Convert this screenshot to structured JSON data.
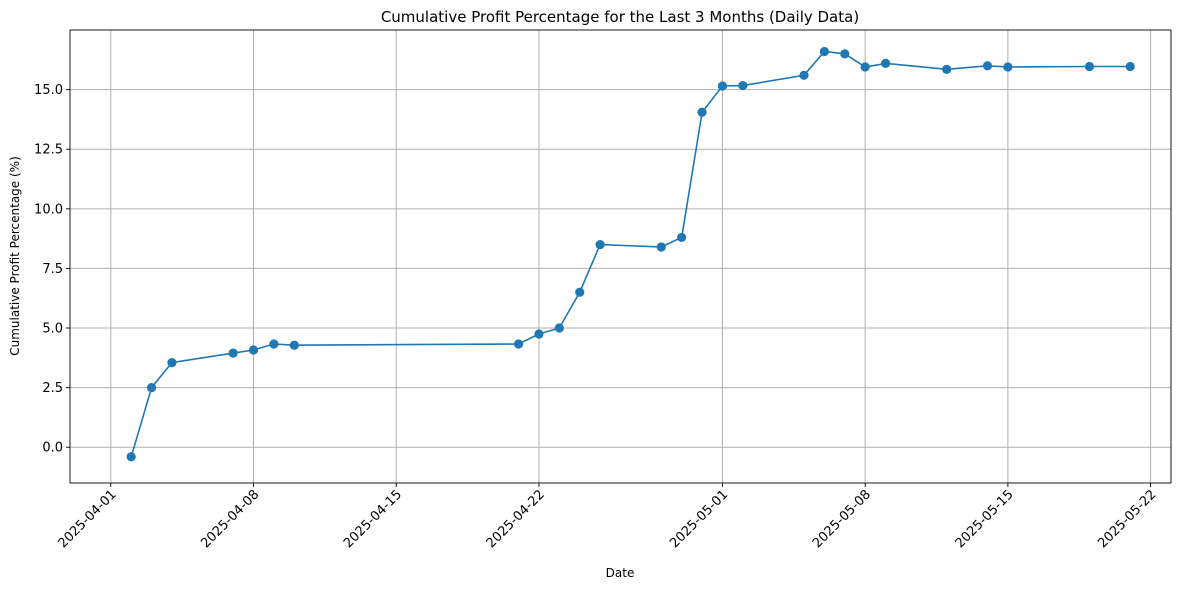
{
  "chart_data": {
    "type": "line",
    "title": "Cumulative Profit Percentage for the Last 3 Months (Daily Data)",
    "xlabel": "Date",
    "ylabel": "Cumulative Profit Percentage (%)",
    "xlim": [
      "2025-03-30",
      "2025-05-23"
    ],
    "ylim": [
      -1.5,
      17.5
    ],
    "x_ticks": [
      "2025-04-01",
      "2025-04-08",
      "2025-04-15",
      "2025-04-22",
      "2025-05-01",
      "2025-05-08",
      "2025-05-15",
      "2025-05-22"
    ],
    "y_ticks": [
      0.0,
      2.5,
      5.0,
      7.5,
      10.0,
      12.5,
      15.0
    ],
    "y_tick_labels": [
      "0.0",
      "2.5",
      "5.0",
      "7.5",
      "10.0",
      "12.5",
      "15.0"
    ],
    "grid": true,
    "color": "#1f77b4",
    "marker": "circle",
    "series": [
      {
        "x": [
          "2025-04-02",
          "2025-04-03",
          "2025-04-04",
          "2025-04-07",
          "2025-04-08",
          "2025-04-09",
          "2025-04-10",
          "2025-04-21",
          "2025-04-22",
          "2025-04-23",
          "2025-04-24",
          "2025-04-25",
          "2025-04-28",
          "2025-04-29",
          "2025-04-30",
          "2025-05-01",
          "2025-05-02",
          "2025-05-05",
          "2025-05-06",
          "2025-05-07",
          "2025-05-08",
          "2025-05-09",
          "2025-05-12",
          "2025-05-14",
          "2025-05-15",
          "2025-05-19",
          "2025-05-21"
        ],
        "values": [
          -0.4,
          2.5,
          3.55,
          3.95,
          4.08,
          4.33,
          4.28,
          4.33,
          4.75,
          5.0,
          6.5,
          8.5,
          8.4,
          8.8,
          14.05,
          15.15,
          15.17,
          15.6,
          16.6,
          16.5,
          15.95,
          16.1,
          15.85,
          16.0,
          15.95,
          15.97,
          15.97
        ]
      }
    ]
  }
}
